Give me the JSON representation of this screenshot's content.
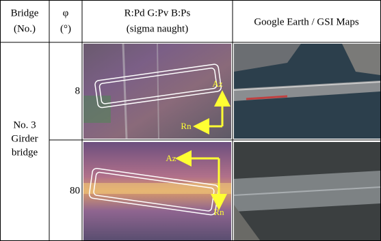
{
  "header": {
    "bridge": [
      "Bridge",
      "(No.)"
    ],
    "phi": [
      "φ",
      "(°)"
    ],
    "sar": [
      "R:Pd G:Pv B:Ps",
      "(sigma naught)"
    ],
    "map": "Google Earth / GSI Maps"
  },
  "bridge_name": [
    "No. 3",
    "Girder",
    "bridge"
  ],
  "rows": [
    {
      "phi": 8,
      "az": "Az",
      "rn": "Rn"
    },
    {
      "phi": 80,
      "az": "Az",
      "rn": "Rn"
    }
  ]
}
